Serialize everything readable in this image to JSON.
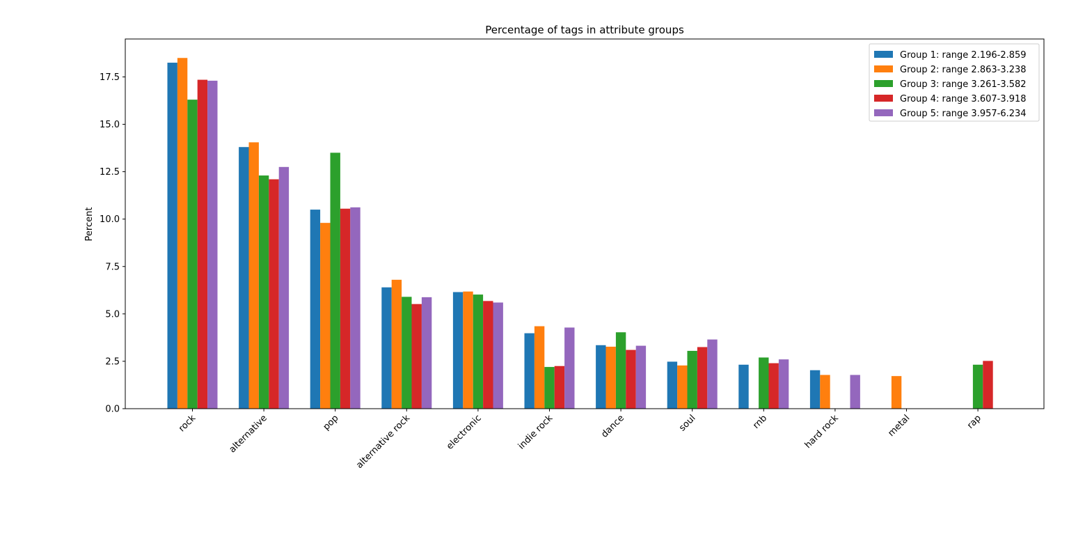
{
  "chart_data": {
    "type": "bar",
    "title": "Percentage of tags in attribute groups",
    "xlabel": "",
    "ylabel": "Percent",
    "ylim": [
      0,
      19.5
    ],
    "yticks": [
      "0.0",
      "2.5",
      "5.0",
      "7.5",
      "10.0",
      "12.5",
      "15.0",
      "17.5"
    ],
    "categories": [
      "rock",
      "alternative",
      "pop",
      "alternative rock",
      "electronic",
      "indie rock",
      "dance",
      "soul",
      "rnb",
      "hard rock",
      "metal",
      "rap"
    ],
    "legend_position": "top-right",
    "grid": false,
    "series": [
      {
        "name": "Group 1: range 2.196-2.859",
        "color": "#1f77b4",
        "values": [
          18.25,
          13.8,
          10.5,
          6.4,
          6.15,
          3.98,
          3.35,
          2.48,
          2.32,
          2.03,
          0,
          0
        ]
      },
      {
        "name": "Group 2: range 2.863-3.238",
        "color": "#ff7f0e",
        "values": [
          18.5,
          14.05,
          9.8,
          6.8,
          6.18,
          4.35,
          3.27,
          2.28,
          0,
          1.78,
          1.72,
          0
        ]
      },
      {
        "name": "Group 3: range 3.261-3.582",
        "color": "#2ca02c",
        "values": [
          16.3,
          12.3,
          13.5,
          5.9,
          6.02,
          2.2,
          4.03,
          3.05,
          2.7,
          0,
          0,
          2.32
        ]
      },
      {
        "name": "Group 4: range 3.607-3.918",
        "color": "#d62728",
        "values": [
          17.35,
          12.1,
          10.55,
          5.52,
          5.68,
          2.25,
          3.1,
          3.25,
          2.4,
          0,
          0,
          2.52
        ]
      },
      {
        "name": "Group 5: range 3.957-6.234",
        "color": "#9467bd",
        "values": [
          17.3,
          12.75,
          10.62,
          5.88,
          5.6,
          4.28,
          3.32,
          3.65,
          2.6,
          1.78,
          0,
          0
        ]
      }
    ]
  }
}
